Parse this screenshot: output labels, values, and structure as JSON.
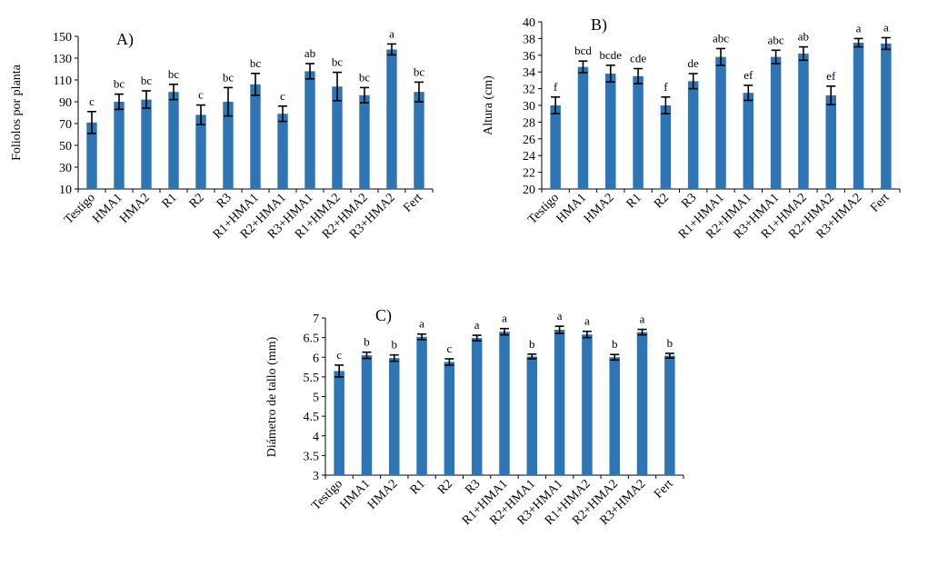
{
  "chart_data": [
    {
      "type": "bar",
      "panel_label": "A)",
      "title": "",
      "xlabel": "",
      "ylabel": "Foliolos por planta",
      "ylim": [
        10,
        150
      ],
      "yticks": [
        10,
        30,
        50,
        70,
        90,
        110,
        130,
        150
      ],
      "categories": [
        "Testigo",
        "HMA1",
        "HMA2",
        "R1",
        "R2",
        "R3",
        "R1+HMA1",
        "R2+HMA1",
        "R3+HMA1",
        "R1+HMA2",
        "R2+HMA2",
        "R3+HMA2",
        "Fert"
      ],
      "values": [
        71,
        90,
        92,
        99,
        78,
        90,
        106,
        79,
        118,
        104,
        96,
        138,
        99
      ],
      "errors": [
        10,
        7,
        8,
        7,
        9,
        13,
        10,
        7,
        7,
        13,
        7,
        5,
        9
      ],
      "letters": [
        "c",
        "bc",
        "bc",
        "bc",
        "c",
        "bc",
        "bc",
        "c",
        "ab",
        "bc",
        "bc",
        "a",
        "bc"
      ],
      "color": "#2e75b6"
    },
    {
      "type": "bar",
      "panel_label": "B)",
      "title": "",
      "xlabel": "",
      "ylabel": "Altura (cm)",
      "ylim": [
        20,
        40
      ],
      "yticks": [
        20,
        22,
        24,
        26,
        28,
        30,
        32,
        34,
        36,
        38,
        40
      ],
      "categories": [
        "Testigo",
        "HMA1",
        "HMA2",
        "R1",
        "R2",
        "R3",
        "R1+HMA1",
        "R2+HMA1",
        "R3+HMA1",
        "R1+HMA2",
        "R2+HMA2",
        "R3+HMA2",
        "Fert"
      ],
      "values": [
        30.0,
        34.6,
        33.8,
        33.5,
        30.0,
        32.9,
        35.8,
        31.5,
        35.8,
        36.2,
        31.2,
        37.5,
        37.4
      ],
      "errors": [
        1.0,
        0.7,
        1.0,
        0.9,
        1.0,
        0.9,
        1.0,
        0.9,
        0.8,
        0.8,
        1.1,
        0.5,
        0.7
      ],
      "letters": [
        "f",
        "bcd",
        "bcde",
        "cde",
        "f",
        "de",
        "abc",
        "ef",
        "abc",
        "ab",
        "ef",
        "a",
        "a"
      ],
      "color": "#2e75b6"
    },
    {
      "type": "bar",
      "panel_label": "C)",
      "title": "",
      "xlabel": "",
      "ylabel": "Diámetro de tallo (mm)",
      "ylim": [
        3,
        7
      ],
      "yticks": [
        "3",
        "3.5",
        "4",
        "4.5",
        "5",
        "5.5",
        "6",
        "6.5",
        "7"
      ],
      "categories": [
        "Testigo",
        "HMA1",
        "HMA2",
        "R1",
        "R2",
        "R3",
        "R1+HMA1",
        "R2+HMA1",
        "R3+HMA1",
        "R1+HMA2",
        "R2+HMA2",
        "R3+HMA2",
        "Fert"
      ],
      "values": [
        5.65,
        6.05,
        5.98,
        6.52,
        5.88,
        6.49,
        6.65,
        6.02,
        6.7,
        6.58,
        6.0,
        6.64,
        6.04
      ],
      "errors": [
        0.15,
        0.08,
        0.08,
        0.07,
        0.08,
        0.07,
        0.08,
        0.06,
        0.09,
        0.08,
        0.07,
        0.07,
        0.06
      ],
      "letters": [
        "c",
        "b",
        "b",
        "a",
        "c",
        "a",
        "a",
        "b",
        "a",
        "a",
        "b",
        "a",
        "b"
      ],
      "color": "#2e75b6"
    }
  ]
}
